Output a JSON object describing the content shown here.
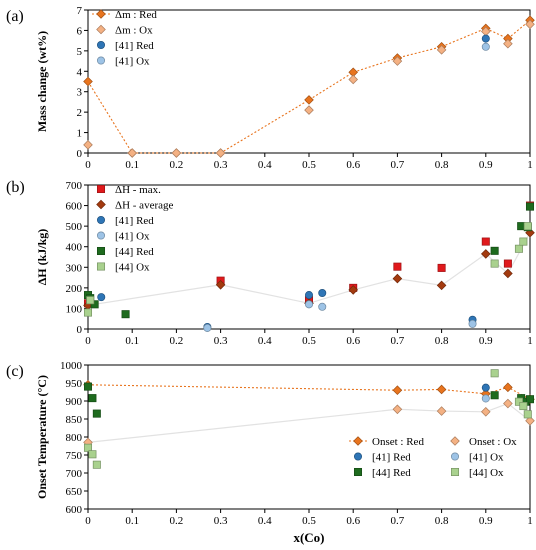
{
  "x_axis": {
    "label": "x(Co)",
    "ticks": [
      "0",
      "0.1",
      "0.2",
      "0.3",
      "0.4",
      "0.5",
      "0.6",
      "0.7",
      "0.8",
      "0.9",
      "1"
    ]
  },
  "chart_data": [
    {
      "panel_label": "(a)",
      "type": "scatter",
      "ylabel": "Mass change (wt%)",
      "xlim": [
        0,
        1
      ],
      "ylim": [
        0,
        7
      ],
      "y_ticks": [
        "0",
        "1",
        "2",
        "3",
        "4",
        "5",
        "6",
        "7"
      ],
      "grid": false,
      "legend": "top-left",
      "series": [
        {
          "name": "Δm : Red",
          "marker": "diamond",
          "color": "#E8741E",
          "line": "dotted",
          "points": [
            [
              0,
              3.5
            ],
            [
              0.1,
              0
            ],
            [
              0.2,
              0
            ],
            [
              0.3,
              0
            ],
            [
              0.5,
              2.6
            ],
            [
              0.6,
              3.95
            ],
            [
              0.7,
              4.65
            ],
            [
              0.8,
              5.2
            ],
            [
              0.9,
              6.1
            ],
            [
              0.95,
              5.6
            ],
            [
              1,
              6.5
            ]
          ]
        },
        {
          "name": "Δm : Ox",
          "marker": "diamond",
          "color": "#F4B183",
          "line": "none",
          "points": [
            [
              0,
              0.4
            ],
            [
              0.1,
              0
            ],
            [
              0.2,
              0
            ],
            [
              0.3,
              0
            ],
            [
              0.5,
              2.1
            ],
            [
              0.6,
              3.6
            ],
            [
              0.7,
              4.5
            ],
            [
              0.8,
              5.05
            ],
            [
              0.9,
              5.95
            ],
            [
              0.95,
              5.35
            ],
            [
              1,
              6.3
            ]
          ]
        },
        {
          "name": "[41] Red",
          "marker": "circle",
          "color": "#2E75B6",
          "line": "none",
          "points": [
            [
              0.9,
              5.6
            ]
          ]
        },
        {
          "name": "[41] Ox",
          "marker": "circle",
          "color": "#9DC3E6",
          "line": "none",
          "points": [
            [
              0.9,
              5.2
            ]
          ]
        }
      ]
    },
    {
      "panel_label": "(b)",
      "type": "scatter",
      "ylabel": "ΔH (kJ/kg)",
      "xlim": [
        0,
        1
      ],
      "ylim": [
        0,
        700
      ],
      "y_ticks": [
        "0",
        "100",
        "200",
        "300",
        "400",
        "500",
        "600",
        "700"
      ],
      "grid": false,
      "legend": "top-left",
      "series": [
        {
          "name": "ΔH - max.",
          "marker": "square",
          "color": "#E0191C",
          "line": "none",
          "points": [
            [
              0,
              125
            ],
            [
              0.3,
              235
            ],
            [
              0.5,
              140
            ],
            [
              0.6,
              200
            ],
            [
              0.7,
              303
            ],
            [
              0.8,
              297
            ],
            [
              0.9,
              425
            ],
            [
              0.95,
              318
            ],
            [
              1,
              600
            ]
          ]
        },
        {
          "name": "ΔH - average",
          "marker": "diamond",
          "color": "#A33A0F",
          "line": "solid-light",
          "points": [
            [
              0,
              115
            ],
            [
              0.3,
              215
            ],
            [
              0.5,
              125
            ],
            [
              0.6,
              190
            ],
            [
              0.7,
              245
            ],
            [
              0.8,
              212
            ],
            [
              0.9,
              365
            ],
            [
              0.95,
              270
            ],
            [
              1,
              468
            ]
          ]
        },
        {
          "name": "[41] Red",
          "marker": "circle",
          "color": "#2E75B6",
          "line": "none",
          "points": [
            [
              0.03,
              155
            ],
            [
              0.27,
              10
            ],
            [
              0.5,
              165
            ],
            [
              0.53,
              175
            ],
            [
              0.87,
              45
            ]
          ]
        },
        {
          "name": "[41] Ox",
          "marker": "circle",
          "color": "#9DC3E6",
          "line": "none",
          "points": [
            [
              0.27,
              5
            ],
            [
              0.5,
              120
            ],
            [
              0.53,
              108
            ],
            [
              0.87,
              25
            ]
          ]
        },
        {
          "name": "[44] Red",
          "marker": "square",
          "color": "#1E6B1E",
          "line": "none",
          "points": [
            [
              0,
              165
            ],
            [
              0.005,
              150
            ],
            [
              0.015,
              120
            ],
            [
              0.085,
              72
            ],
            [
              0.92,
              380
            ],
            [
              0.98,
              500
            ],
            [
              0.995,
              495
            ],
            [
              1,
              595
            ]
          ]
        },
        {
          "name": "[44] Ox",
          "marker": "square",
          "color": "#A9D18E",
          "line": "none",
          "points": [
            [
              0,
              80
            ],
            [
              0.005,
              140
            ],
            [
              0.92,
              318
            ],
            [
              0.975,
              390
            ],
            [
              0.985,
              425
            ],
            [
              0.995,
              500
            ]
          ]
        }
      ]
    },
    {
      "panel_label": "(c)",
      "type": "scatter",
      "ylabel": "Onset Temperature (°C)",
      "xlabel": "x(Co)",
      "xlim": [
        0,
        1
      ],
      "ylim": [
        600,
        1000
      ],
      "y_ticks": [
        "600",
        "650",
        "700",
        "750",
        "800",
        "850",
        "900",
        "950",
        "1000"
      ],
      "grid": false,
      "legend": "bottom-right",
      "series": [
        {
          "name": "Onset : Red",
          "marker": "diamond",
          "color": "#E8741E",
          "line": "dotted",
          "points": [
            [
              0,
              945
            ],
            [
              0.7,
              930
            ],
            [
              0.8,
              932
            ],
            [
              0.9,
              920
            ],
            [
              0.95,
              938
            ],
            [
              1,
              905
            ]
          ]
        },
        {
          "name": "Onset : Ox",
          "marker": "diamond",
          "color": "#F4B183",
          "line": "solid-light",
          "points": [
            [
              0,
              785
            ],
            [
              0.7,
              877
            ],
            [
              0.8,
              872
            ],
            [
              0.9,
              870
            ],
            [
              0.95,
              893
            ],
            [
              1,
              845
            ]
          ]
        },
        {
          "name": "[41] Red",
          "marker": "circle",
          "color": "#2E75B6",
          "line": "none",
          "points": [
            [
              0.9,
              937
            ]
          ]
        },
        {
          "name": "[41] Ox",
          "marker": "circle",
          "color": "#9DC3E6",
          "line": "none",
          "points": [
            [
              0.9,
              907
            ]
          ]
        },
        {
          "name": "[44] Red",
          "marker": "square",
          "color": "#1E6B1E",
          "line": "none",
          "points": [
            [
              0,
              940
            ],
            [
              0.01,
              908
            ],
            [
              0.02,
              865
            ],
            [
              0.92,
              916
            ],
            [
              0.98,
              908
            ],
            [
              0.99,
              898
            ],
            [
              1,
              905
            ]
          ]
        },
        {
          "name": "[44] Ox",
          "marker": "square",
          "color": "#A9D18E",
          "line": "none",
          "points": [
            [
              0,
              770
            ],
            [
              0.01,
              752
            ],
            [
              0.02,
              723
            ],
            [
              0.92,
              977
            ],
            [
              0.975,
              898
            ],
            [
              0.985,
              886
            ],
            [
              0.995,
              863
            ]
          ]
        }
      ]
    }
  ]
}
